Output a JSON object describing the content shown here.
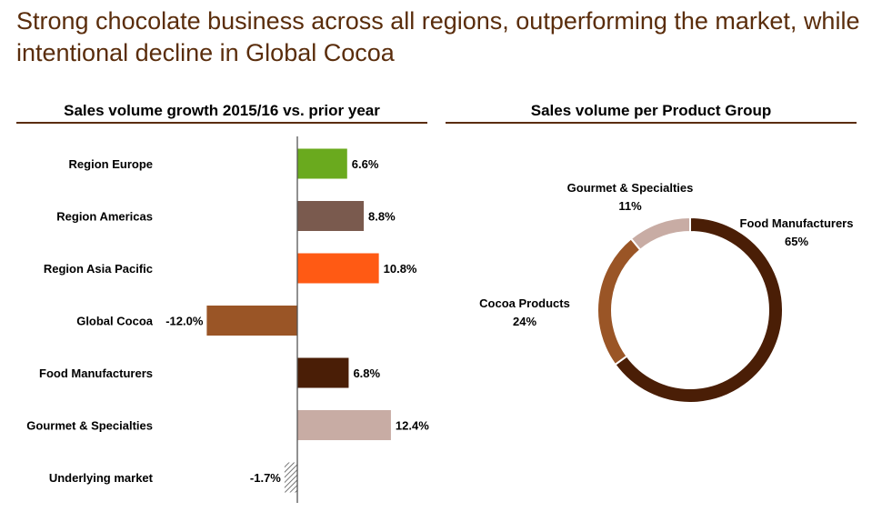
{
  "slide": {
    "title": "Strong chocolate business across all regions, outperforming the market, while intentional decline in Global Cocoa"
  },
  "colors": {
    "title": "#5a2d0c",
    "rule": "#5a2d0c"
  },
  "chart_data": [
    {
      "type": "bar",
      "orientation": "horizontal",
      "title": "Sales volume growth 2015/16 vs. prior year",
      "categories": [
        "Region Europe",
        "Region Americas",
        "Region Asia Pacific",
        "Global Cocoa",
        "Food Manufacturers",
        "Gourmet & Specialties",
        "Underlying market"
      ],
      "values": [
        6.6,
        8.8,
        10.8,
        -12.0,
        6.8,
        12.4,
        -1.7
      ],
      "value_labels": [
        "6.6%",
        "8.8%",
        "10.8%",
        "-12.0%",
        "6.8%",
        "12.4%",
        "-1.7%"
      ],
      "colors": [
        "#6aaa1e",
        "#7a5a4e",
        "#ff5a14",
        "#9a5526",
        "#4a1e06",
        "#c8aca4",
        "hatched"
      ],
      "xlim": [
        -12.0,
        12.4
      ],
      "grid": false,
      "legend": "none"
    },
    {
      "type": "pie",
      "style": "donut",
      "title": "Sales volume per Product Group",
      "slices": [
        {
          "label": "Food Manufacturers",
          "value": 65,
          "value_label": "65%",
          "color": "#4a1e06"
        },
        {
          "label": "Cocoa Products",
          "value": 24,
          "value_label": "24%",
          "color": "#9a5526"
        },
        {
          "label": "Gourmet & Specialties",
          "value": 11,
          "value_label": "11%",
          "color": "#c8aca4"
        }
      ],
      "legend": "none"
    }
  ]
}
